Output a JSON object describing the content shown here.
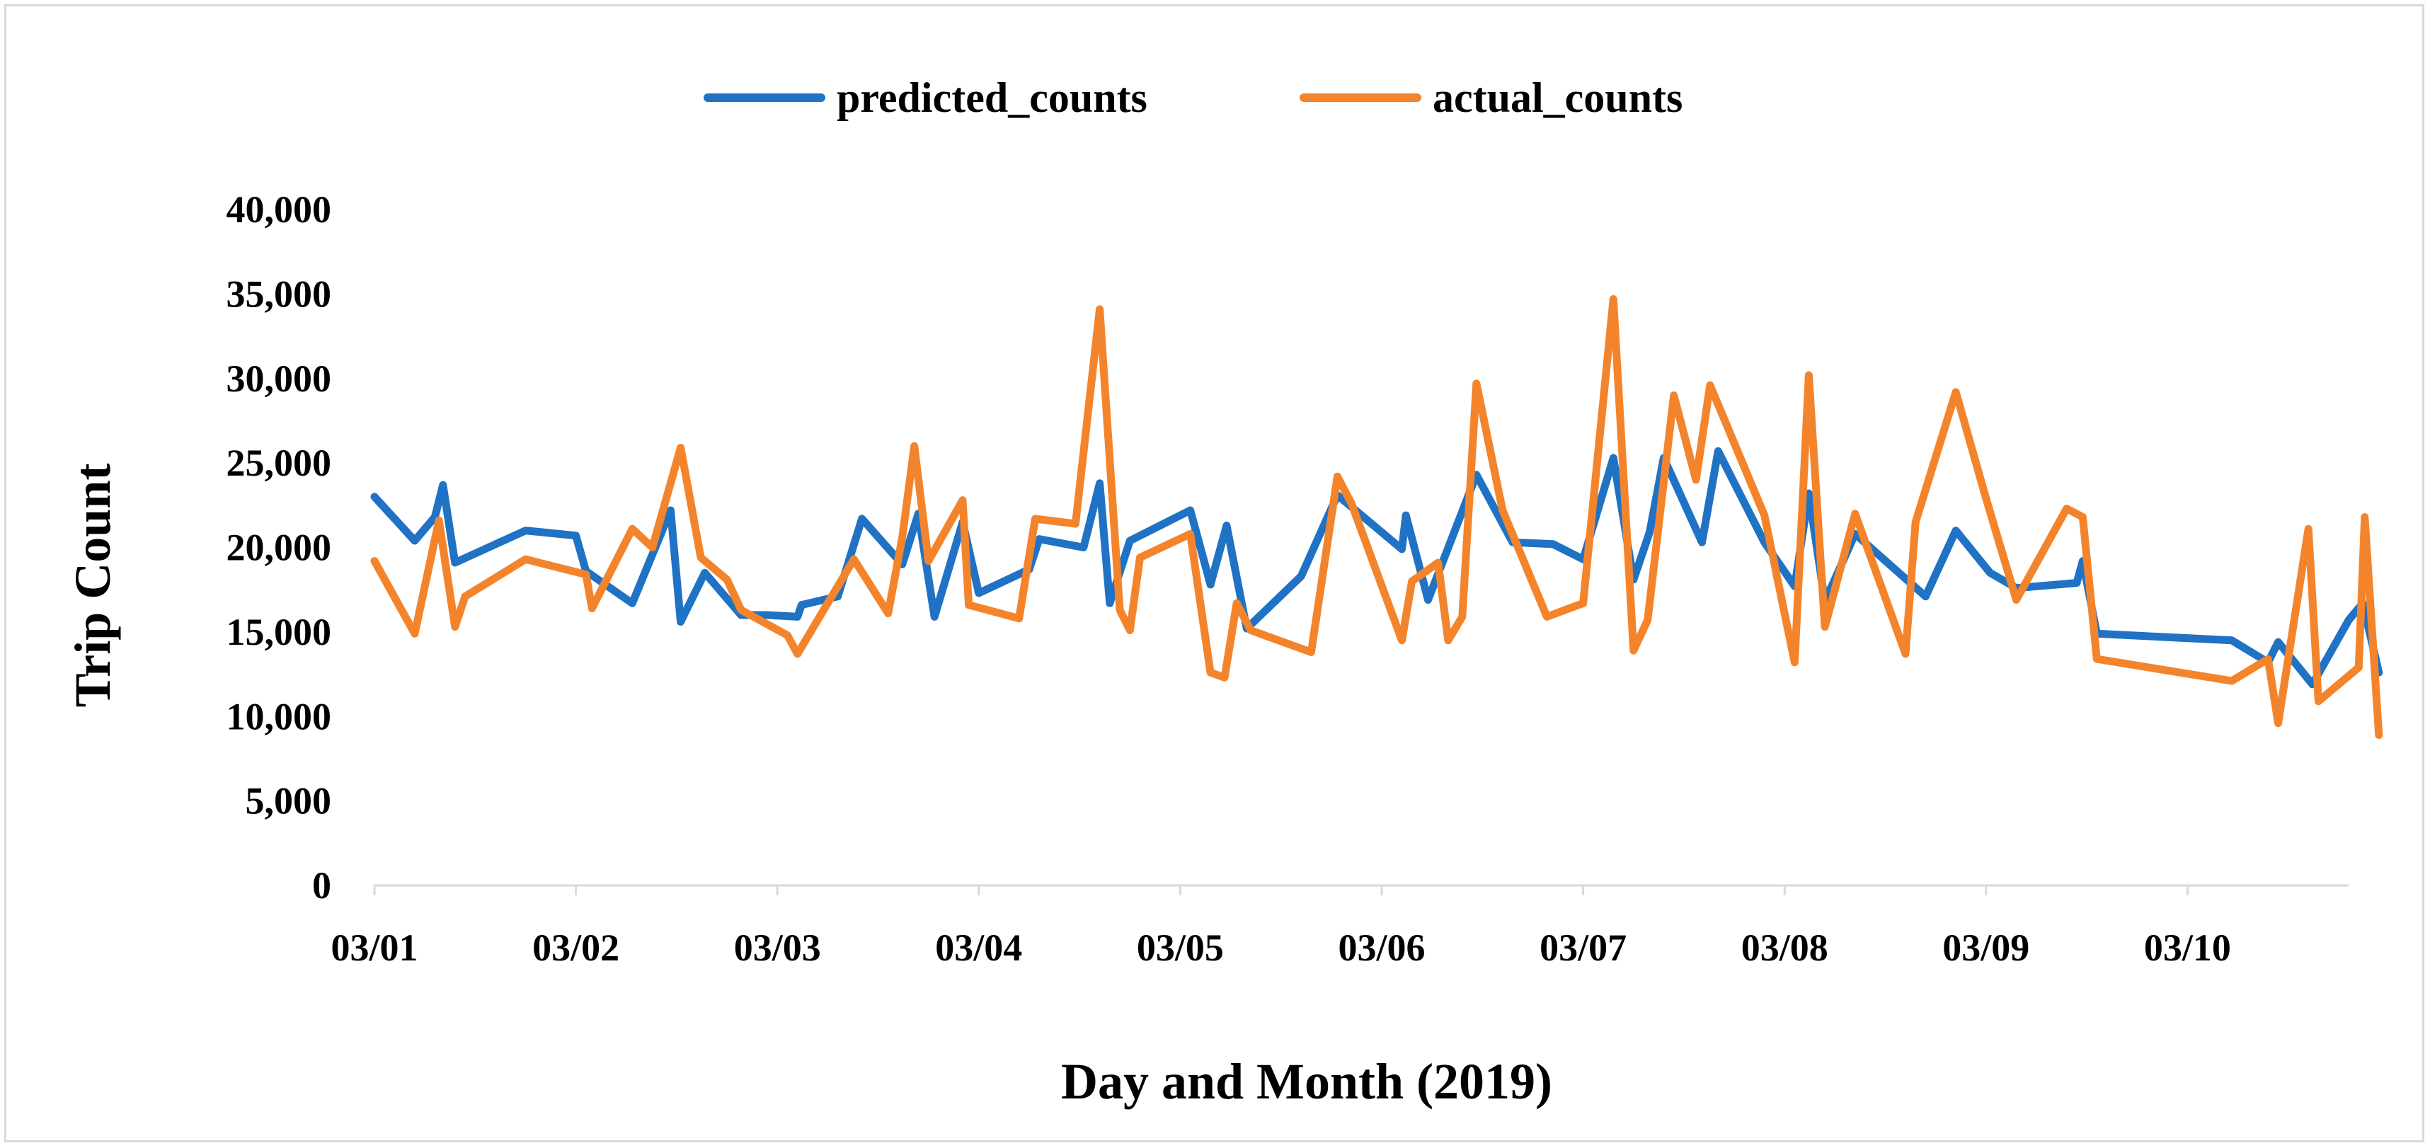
{
  "chart_data": {
    "type": "line",
    "xlabel": "Day and Month (2019)",
    "ylabel": "Trip Count",
    "ylim": [
      0,
      40000
    ],
    "yticks": [
      "0",
      "5,000",
      "10,000",
      "15,000",
      "20,000",
      "25,000",
      "30,000",
      "35,000",
      "40,000"
    ],
    "xticks": [
      "03/01",
      "03/02",
      "03/03",
      "03/04",
      "03/05",
      "03/06",
      "03/07",
      "03/08",
      "03/09",
      "03/10"
    ],
    "x_unit": "days since 03/01 00:00",
    "legend_position": "top-center",
    "grid": false,
    "series": [
      {
        "name": "predicted_counts",
        "color": "#1f72c4",
        "points": [
          [
            0.0,
            23000
          ],
          [
            0.2,
            20400
          ],
          [
            0.3,
            21800
          ],
          [
            0.34,
            23700
          ],
          [
            0.4,
            19100
          ],
          [
            0.75,
            21000
          ],
          [
            1.0,
            20700
          ],
          [
            1.05,
            18600
          ],
          [
            1.28,
            16700
          ],
          [
            1.47,
            22200
          ],
          [
            1.52,
            15600
          ],
          [
            1.64,
            18500
          ],
          [
            1.82,
            16000
          ],
          [
            1.95,
            16000
          ],
          [
            2.1,
            15900
          ],
          [
            2.12,
            16600
          ],
          [
            2.3,
            17100
          ],
          [
            2.42,
            21700
          ],
          [
            2.62,
            19000
          ],
          [
            2.7,
            22000
          ],
          [
            2.78,
            15900
          ],
          [
            2.92,
            21500
          ],
          [
            3.0,
            17300
          ],
          [
            3.25,
            18700
          ],
          [
            3.3,
            20500
          ],
          [
            3.52,
            20000
          ],
          [
            3.6,
            23800
          ],
          [
            3.65,
            16700
          ],
          [
            3.75,
            20400
          ],
          [
            4.05,
            22200
          ],
          [
            4.15,
            17800
          ],
          [
            4.23,
            21300
          ],
          [
            4.33,
            15200
          ],
          [
            4.6,
            18300
          ],
          [
            4.78,
            23100
          ],
          [
            5.1,
            19900
          ],
          [
            5.12,
            21900
          ],
          [
            5.23,
            16900
          ],
          [
            5.47,
            24300
          ],
          [
            5.65,
            20300
          ],
          [
            5.85,
            20200
          ],
          [
            6.0,
            19300
          ],
          [
            6.15,
            25300
          ],
          [
            6.25,
            18100
          ],
          [
            6.33,
            20900
          ],
          [
            6.4,
            25300
          ],
          [
            6.59,
            20300
          ],
          [
            6.67,
            25700
          ],
          [
            6.9,
            20300
          ],
          [
            7.05,
            17700
          ],
          [
            7.12,
            23200
          ],
          [
            7.2,
            16800
          ],
          [
            7.35,
            20800
          ],
          [
            7.7,
            17100
          ],
          [
            7.85,
            21000
          ],
          [
            8.02,
            18500
          ],
          [
            8.15,
            17600
          ],
          [
            8.45,
            17900
          ],
          [
            8.48,
            19200
          ],
          [
            8.55,
            14900
          ],
          [
            9.22,
            14500
          ],
          [
            9.4,
            13200
          ],
          [
            9.45,
            14400
          ],
          [
            9.62,
            11900
          ],
          [
            9.8,
            15700
          ],
          [
            9.87,
            16700
          ],
          [
            9.95,
            12600
          ]
        ]
      },
      {
        "name": "actual_counts",
        "color": "#f4842b",
        "points": [
          [
            0.0,
            19200
          ],
          [
            0.2,
            14900
          ],
          [
            0.32,
            21600
          ],
          [
            0.4,
            15300
          ],
          [
            0.45,
            17100
          ],
          [
            0.75,
            19300
          ],
          [
            1.05,
            18400
          ],
          [
            1.08,
            16400
          ],
          [
            1.28,
            21100
          ],
          [
            1.38,
            20000
          ],
          [
            1.52,
            25900
          ],
          [
            1.62,
            19400
          ],
          [
            1.75,
            18100
          ],
          [
            1.82,
            16300
          ],
          [
            2.05,
            14800
          ],
          [
            2.1,
            13700
          ],
          [
            2.38,
            19300
          ],
          [
            2.55,
            16100
          ],
          [
            2.62,
            20600
          ],
          [
            2.68,
            26000
          ],
          [
            2.75,
            19200
          ],
          [
            2.92,
            22800
          ],
          [
            2.95,
            16600
          ],
          [
            3.2,
            15800
          ],
          [
            3.28,
            21700
          ],
          [
            3.48,
            21400
          ],
          [
            3.6,
            34100
          ],
          [
            3.7,
            16300
          ],
          [
            3.75,
            15100
          ],
          [
            3.8,
            19400
          ],
          [
            4.05,
            20800
          ],
          [
            4.15,
            12600
          ],
          [
            4.22,
            12300
          ],
          [
            4.28,
            16700
          ],
          [
            4.35,
            15100
          ],
          [
            4.65,
            13800
          ],
          [
            4.78,
            24200
          ],
          [
            4.85,
            22600
          ],
          [
            5.1,
            14500
          ],
          [
            5.15,
            18000
          ],
          [
            5.28,
            19100
          ],
          [
            5.33,
            14500
          ],
          [
            5.4,
            15900
          ],
          [
            5.47,
            29700
          ],
          [
            5.6,
            22200
          ],
          [
            5.82,
            15900
          ],
          [
            6.0,
            16700
          ],
          [
            6.15,
            34700
          ],
          [
            6.25,
            13900
          ],
          [
            6.32,
            15700
          ],
          [
            6.45,
            29000
          ],
          [
            6.56,
            24000
          ],
          [
            6.63,
            29600
          ],
          [
            6.9,
            21900
          ],
          [
            7.05,
            13200
          ],
          [
            7.12,
            30200
          ],
          [
            7.2,
            15300
          ],
          [
            7.35,
            22000
          ],
          [
            7.6,
            13700
          ],
          [
            7.65,
            21500
          ],
          [
            7.85,
            29200
          ],
          [
            8.0,
            22900
          ],
          [
            8.15,
            16900
          ],
          [
            8.4,
            22300
          ],
          [
            8.48,
            21800
          ],
          [
            8.55,
            13400
          ],
          [
            9.22,
            12100
          ],
          [
            9.4,
            13400
          ],
          [
            9.45,
            9600
          ],
          [
            9.6,
            21100
          ],
          [
            9.65,
            10900
          ],
          [
            9.85,
            12900
          ],
          [
            9.88,
            21800
          ],
          [
            9.95,
            8900
          ]
        ]
      }
    ]
  }
}
